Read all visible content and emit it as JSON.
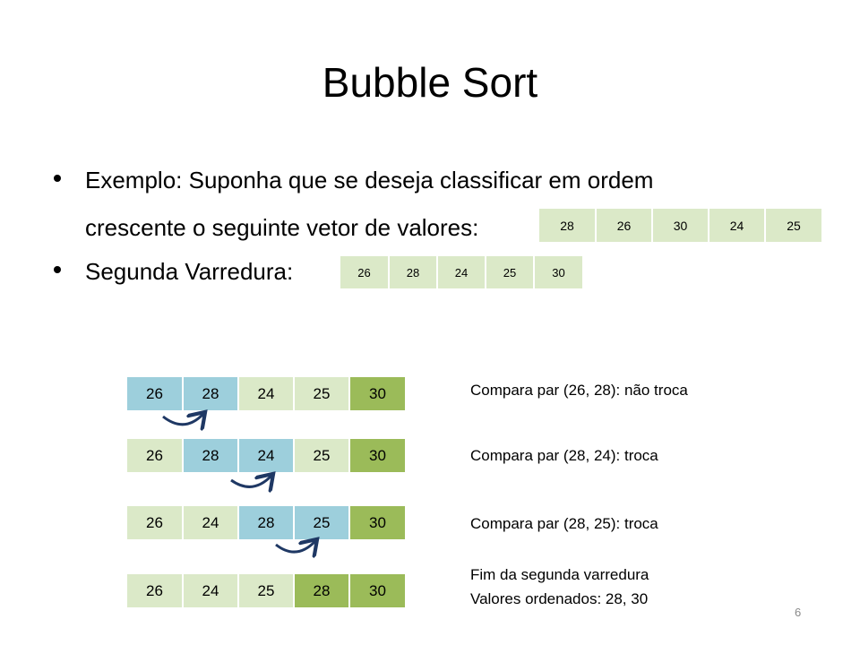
{
  "title": "Bubble Sort",
  "bullets": {
    "line1": "Exemplo: Suponha que se deseja classificar em ordem",
    "line2": "crescente o seguinte vetor de valores:",
    "line3": "Segunda Varredura:"
  },
  "initial_vector": [
    "28",
    "26",
    "30",
    "24",
    "25"
  ],
  "second_pass_result": [
    "26",
    "28",
    "24",
    "25",
    "30"
  ],
  "steps": [
    {
      "values": [
        "26",
        "28",
        "24",
        "25",
        "30"
      ],
      "highlight": [
        "blue",
        "blue",
        "light",
        "light",
        "green"
      ],
      "label": "Compara par (26, 28): não troca"
    },
    {
      "values": [
        "26",
        "28",
        "24",
        "25",
        "30"
      ],
      "highlight": [
        "light",
        "blue",
        "blue",
        "light",
        "green"
      ],
      "label": "Compara par (28, 24): troca"
    },
    {
      "values": [
        "26",
        "24",
        "28",
        "25",
        "30"
      ],
      "highlight": [
        "light",
        "light",
        "blue",
        "blue",
        "green"
      ],
      "label": "Compara par (28, 25): troca"
    },
    {
      "values": [
        "26",
        "24",
        "25",
        "28",
        "30"
      ],
      "highlight": [
        "light",
        "light",
        "light",
        "green",
        "green"
      ],
      "label_line1": "Fim da segunda varredura",
      "label_line2": "Valores ordenados: 28, 30"
    }
  ],
  "colors": {
    "light": "#dbe9c8",
    "blue": "#9dcfdc",
    "green": "#9bbb59",
    "arrow": "#1f3864"
  },
  "icons": [
    "curved-arrow-icon"
  ],
  "page_number": "6"
}
